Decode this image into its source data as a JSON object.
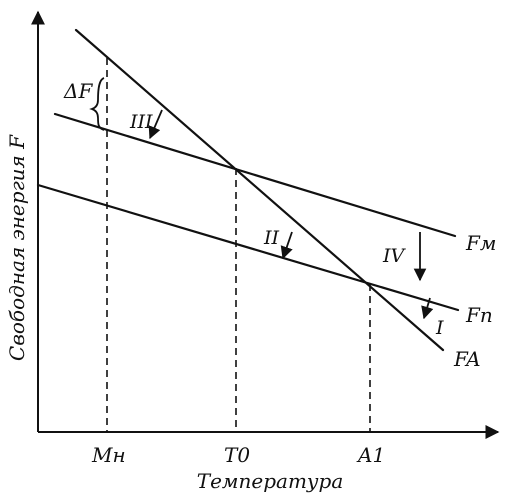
{
  "axes": {
    "y_label": "Свободная энергия F",
    "x_label": "Температура"
  },
  "x_ticks": [
    "Mн",
    "T0",
    "A1"
  ],
  "lines": [
    "Fм",
    "Fп",
    "FA"
  ],
  "transformations": [
    "I",
    "II",
    "III",
    "IV"
  ],
  "delta_label": "ΔF"
}
